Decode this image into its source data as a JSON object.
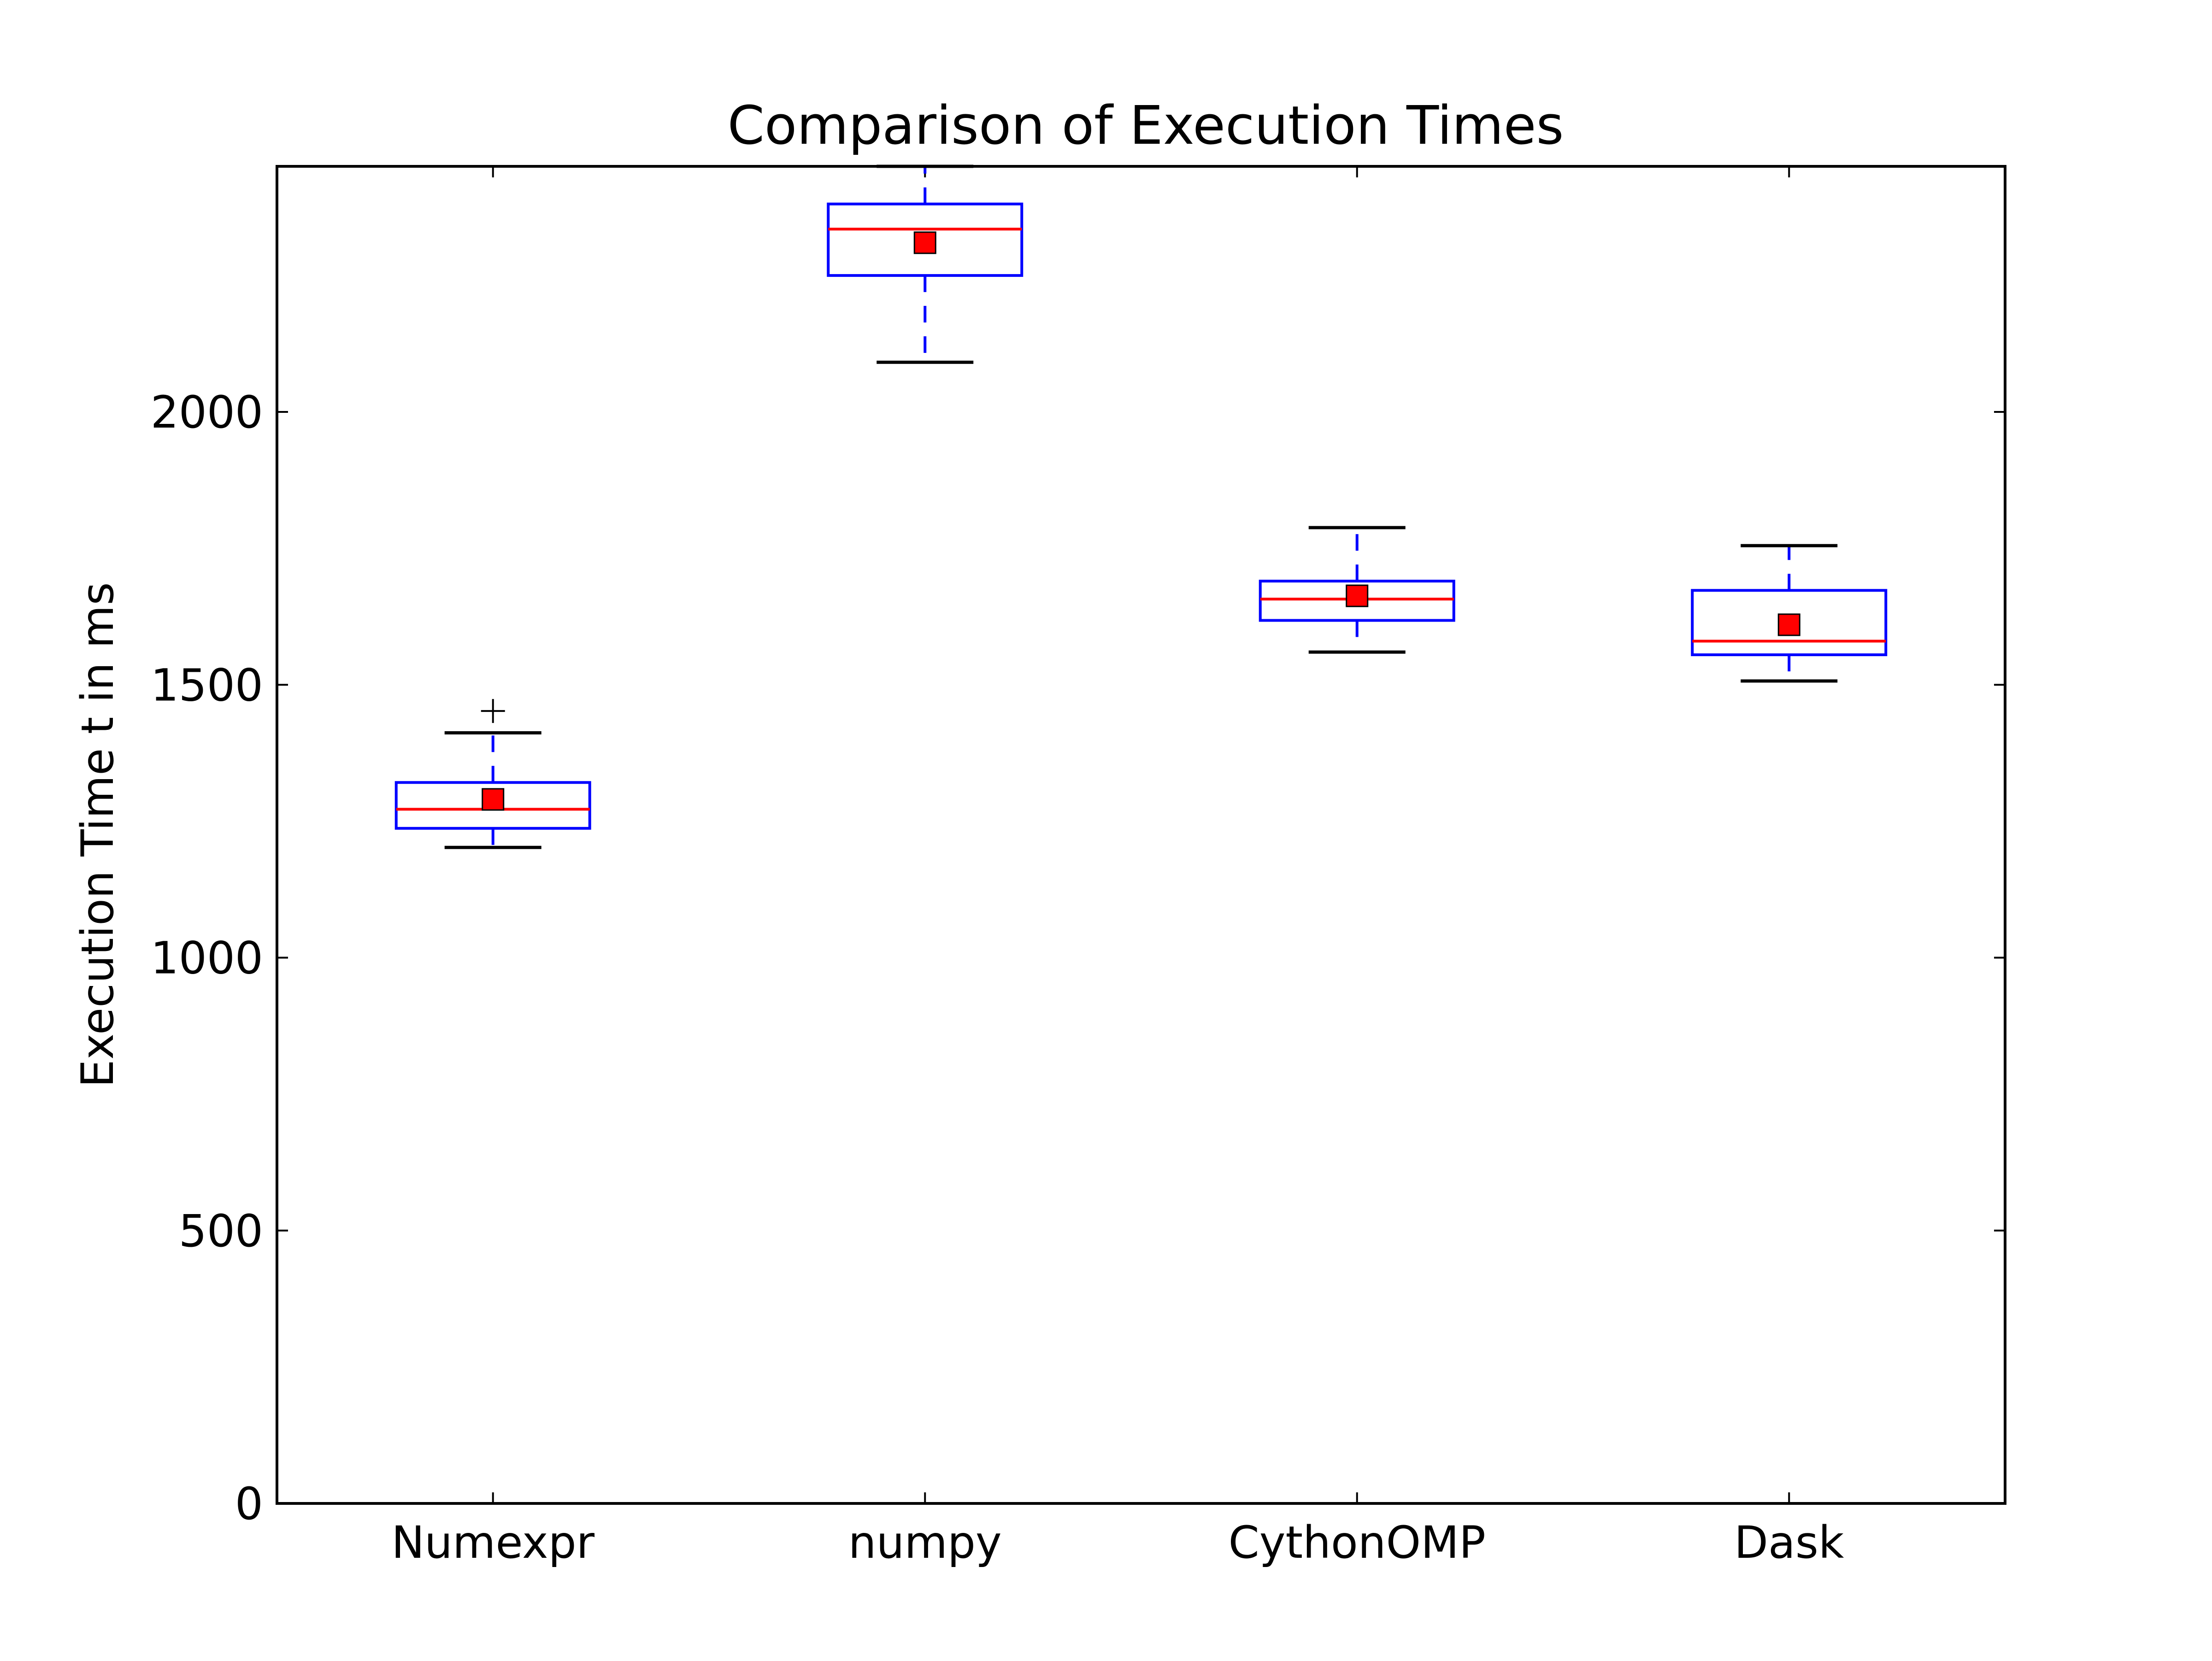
{
  "chart_data": {
    "type": "box",
    "title": "Comparison of Execution Times",
    "xlabel": "",
    "ylabel": "Execution Time t in ms",
    "categories": [
      "Numexpr",
      "numpy",
      "CythonOMP",
      "Dask"
    ],
    "ylim": [
      0,
      2450
    ],
    "yticks": [
      0,
      500,
      1000,
      1500,
      2000
    ],
    "grid": false,
    "boxes": [
      {
        "name": "Numexpr",
        "whisker_low": 1202,
        "q1": 1237,
        "median": 1272,
        "q3": 1321,
        "whisker_high": 1412,
        "mean": 1290,
        "outliers": [
          1452
        ]
      },
      {
        "name": "numpy",
        "whisker_low": 2091,
        "q1": 2250,
        "median": 2335,
        "q3": 2381,
        "whisker_high": 2450,
        "mean": 2310,
        "outliers": []
      },
      {
        "name": "CythonOMP",
        "whisker_low": 1560,
        "q1": 1618,
        "median": 1657,
        "q3": 1690,
        "whisker_high": 1788,
        "mean": 1663,
        "outliers": []
      },
      {
        "name": "Dask",
        "whisker_low": 1507,
        "q1": 1555,
        "median": 1580,
        "q3": 1673,
        "whisker_high": 1755,
        "mean": 1610,
        "outliers": []
      }
    ],
    "colors": {
      "box": "#0000ff",
      "median": "#ff0000",
      "whisker_cap": "#000000",
      "mean_marker": "#ff0000",
      "outlier": "#000000"
    }
  }
}
